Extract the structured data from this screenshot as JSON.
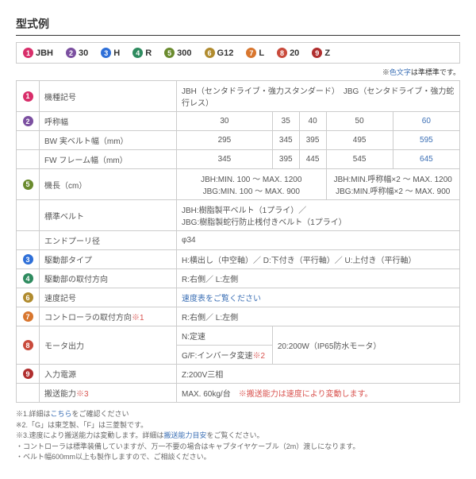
{
  "colors": {
    "c1": "#d82e6a",
    "c2": "#7b4fa0",
    "c3": "#2e6fd8",
    "c4": "#2e8b5f",
    "c5": "#6a8b2e",
    "c6": "#b08b2e",
    "c7": "#d8762e",
    "c8": "#c94a3b",
    "c9": "#b02e2e",
    "red": "#d9534f",
    "blue": "#3b6fb5"
  },
  "title": "型式例",
  "legend": [
    {
      "n": "1",
      "code": "JBH",
      "c": "c1"
    },
    {
      "n": "2",
      "code": "30",
      "c": "c2"
    },
    {
      "n": "3",
      "code": "H",
      "c": "c3"
    },
    {
      "n": "4",
      "code": "R",
      "c": "c4"
    },
    {
      "n": "5",
      "code": "300",
      "c": "c5"
    },
    {
      "n": "6",
      "code": "G12",
      "c": "c6"
    },
    {
      "n": "7",
      "code": "L",
      "c": "c7"
    },
    {
      "n": "8",
      "code": "20",
      "c": "c8"
    },
    {
      "n": "9",
      "code": "Z",
      "c": "c9"
    }
  ],
  "note_top": "※色文字は準標準です。",
  "rows": {
    "r1": {
      "label": "機種記号",
      "val": "JBH（センタドライブ・強力スタンダード）　JBG（センタドライブ・強力蛇行レス）"
    },
    "r2": {
      "label": "呼称幅",
      "vals": [
        "30",
        "35",
        "40",
        "50",
        "60"
      ]
    },
    "r3": {
      "label": "BW 実ベルト幅（mm）",
      "vals": [
        "295",
        "345",
        "395",
        "495",
        "595"
      ]
    },
    "r4": {
      "label": "FW フレーム幅（mm）",
      "vals": [
        "345",
        "395",
        "445",
        "545",
        "645"
      ]
    },
    "r5": {
      "label": "機長（cm）",
      "left": "JBH:MIN. 100 ～ MAX. 1200\nJBG:MIN. 100 ～ MAX. 900",
      "right": "JBH:MIN.呼称幅×2 ～ MAX. 1200\nJBG:MIN.呼称幅×2 ～ MAX. 900"
    },
    "r6": {
      "label": "標準ベルト",
      "val": "JBH:樹脂製平ベルト（1プライ）／\nJBG:樹脂製蛇行防止桟付きベルト（1プライ）"
    },
    "r7": {
      "label": "エンドプーリ径",
      "val": "φ34"
    },
    "r8": {
      "label": "駆動部タイプ",
      "val": "H:横出し（中空軸）／ D:下付き（平行軸）／ U:上付き（平行軸）"
    },
    "r9": {
      "label": "駆動部の取付方向",
      "val": "R:右側／ L:左側"
    },
    "r10": {
      "label": "速度記号",
      "val": "速度表をご覧ください"
    },
    "r11": {
      "label": "コントローラの取付方向",
      "sup": "※1",
      "val": "R:右側／ L:左側"
    },
    "r12": {
      "label": "モータ出力",
      "sub1": "N:定速",
      "sub2": "G/F:インバータ変速",
      "sub2sup": "※2",
      "val": "20:200W（IP65防水モータ）"
    },
    "r13": {
      "label": "入力電源",
      "val": "Z:200V三相"
    },
    "r14": {
      "label": "搬送能力",
      "sup": "※3",
      "val": "MAX. 60kg/台　",
      "note": "※搬送能力は速度により変動します。"
    }
  },
  "footnotes": [
    "※1.詳細はこちらをご確認ください",
    "※2.「G」は東芝製、「F」は三菱製です。",
    "※3.速度により搬送能力は変動します。詳細は搬送能力目安をご覧ください。",
    "・コントローラは標準装備していますが、万一不要の場合はキャプタイヤケーブル（2m）渡しになります。",
    "・ベルト幅600mm以上も製作しますので、ご相談ください。"
  ]
}
